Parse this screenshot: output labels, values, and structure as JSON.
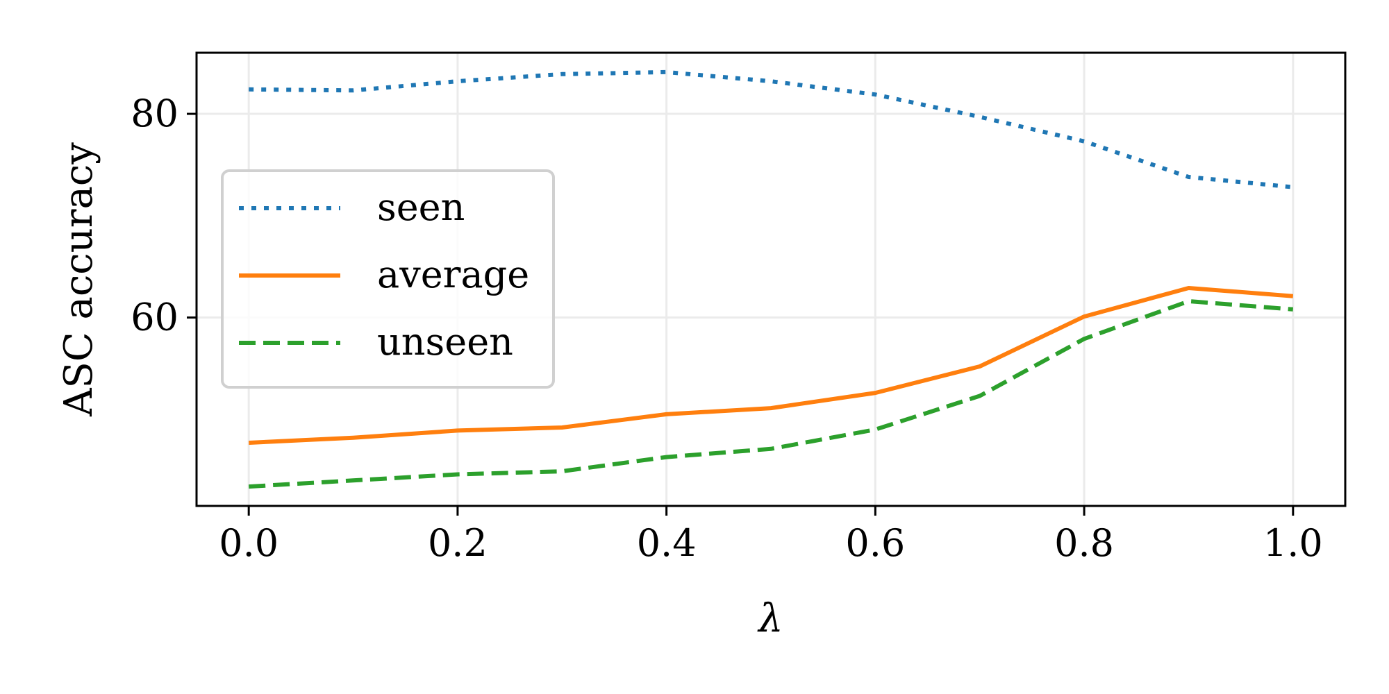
{
  "chart_data": {
    "type": "line",
    "title": "",
    "xlabel": "λ",
    "ylabel": "ASC accuracy",
    "x": [
      0.0,
      0.1,
      0.2,
      0.3,
      0.4,
      0.5,
      0.6,
      0.7,
      0.8,
      0.9,
      1.0
    ],
    "xlim": [
      -0.05,
      1.05
    ],
    "ylim": [
      41.5,
      86.0
    ],
    "xticks": [
      0.0,
      0.2,
      0.4,
      0.6,
      0.8,
      1.0
    ],
    "xtick_labels": [
      "0.0",
      "0.2",
      "0.4",
      "0.6",
      "0.8",
      "1.0"
    ],
    "yticks": [
      60,
      80
    ],
    "ytick_labels": [
      "60",
      "80"
    ],
    "grid": true,
    "legend_position": "center-left",
    "series": [
      {
        "name": "seen",
        "style": "dotted",
        "color": "#1f77b4",
        "values": [
          82.4,
          82.3,
          83.2,
          83.9,
          84.1,
          83.2,
          81.9,
          79.7,
          77.3,
          73.8,
          72.8
        ]
      },
      {
        "name": "average",
        "style": "solid",
        "color": "#ff7f0e",
        "values": [
          47.7,
          48.2,
          48.9,
          49.2,
          50.5,
          51.1,
          52.6,
          55.2,
          60.1,
          62.9,
          62.1
        ]
      },
      {
        "name": "unseen",
        "style": "dashed",
        "color": "#2ca02c",
        "values": [
          43.4,
          44.0,
          44.6,
          44.9,
          46.3,
          47.1,
          49.0,
          52.3,
          57.9,
          61.6,
          60.8
        ]
      }
    ]
  }
}
